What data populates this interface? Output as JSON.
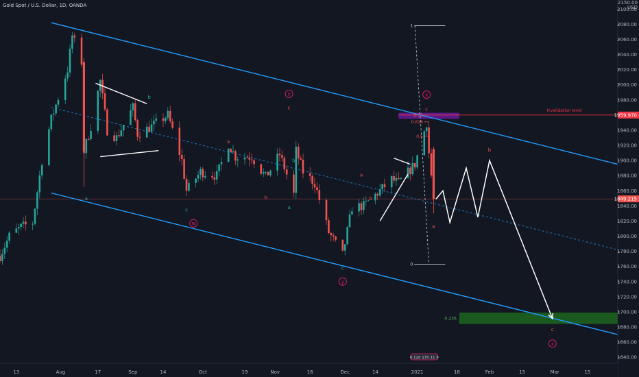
{
  "header": {
    "title": "Gold Spot / U.S. Dollar, 1D, OANDA",
    "currency": "USD"
  },
  "colors": {
    "background": "#131722",
    "grid": "#1e222d",
    "bull": "#26a69a",
    "bear": "#ef5350",
    "channel": "#2196f3",
    "drawing": "#ffffff",
    "label_green": "#26a69a",
    "label_red": "#ef5350",
    "label_magenta": "#e91e63",
    "invalidation": "#f23645",
    "target_zone": "#1b5e20",
    "fib_zone": "#6a1b9a"
  },
  "chart_data": {
    "type": "candlestick",
    "symbol": "Gold Spot / U.S. Dollar",
    "interval": "1D",
    "broker": "OANDA",
    "ylim": [
      1632,
      2112
    ],
    "xlim": [
      "2020-07-06",
      "2021-03-28"
    ],
    "y_ticks": [
      1640,
      1660,
      1680,
      1700,
      1720,
      1740,
      1760,
      1780,
      1800,
      1820,
      1840,
      1860,
      1880,
      1900,
      1920,
      1940,
      1960,
      1980,
      2000,
      2020,
      2040,
      2060,
      2080,
      2100
    ],
    "top_partial_label": "2150.00",
    "x_ticks": [
      {
        "label": "13",
        "date": "2020-07-13"
      },
      {
        "label": "Aug",
        "date": "2020-08-01"
      },
      {
        "label": "17",
        "date": "2020-08-17"
      },
      {
        "label": "Sep",
        "date": "2020-09-01"
      },
      {
        "label": "14",
        "date": "2020-09-14"
      },
      {
        "label": "Oct",
        "date": "2020-10-01"
      },
      {
        "label": "19",
        "date": "2020-10-19"
      },
      {
        "label": "Nov",
        "date": "2020-11-01"
      },
      {
        "label": "16",
        "date": "2020-11-16"
      },
      {
        "label": "Dec",
        "date": "2020-12-01"
      },
      {
        "label": "14",
        "date": "2020-12-14"
      },
      {
        "label": "2021",
        "date": "2021-01-01"
      },
      {
        "label": "18",
        "date": "2021-01-18"
      },
      {
        "label": "Feb",
        "date": "2021-02-01"
      },
      {
        "label": "15",
        "date": "2021-02-15"
      },
      {
        "label": "Mar",
        "date": "2021-03-01"
      },
      {
        "label": "15",
        "date": "2021-03-15"
      }
    ],
    "grid": false,
    "price_tags": [
      {
        "label": "1959.970",
        "value": 1959.97,
        "color": "#f23645"
      },
      {
        "label": "1849.215",
        "value": 1849.215,
        "color": "#ef5350"
      }
    ],
    "countdown_label": "6 12d 17h 11 9",
    "close_trend": [
      [
        "2020-07-06",
        1774
      ],
      [
        "2020-07-10",
        1800
      ],
      [
        "2020-07-15",
        1812
      ],
      [
        "2020-07-20",
        1818
      ],
      [
        "2020-07-24",
        1900
      ],
      [
        "2020-07-28",
        1955
      ],
      [
        "2020-08-04",
        2020
      ],
      [
        "2020-08-06",
        2065
      ],
      [
        "2020-08-10",
        2030
      ],
      [
        "2020-08-11",
        1912
      ],
      [
        "2020-08-14",
        1945
      ],
      [
        "2020-08-18",
        2005
      ],
      [
        "2020-08-21",
        1940
      ],
      [
        "2020-08-25",
        1930
      ],
      [
        "2020-09-01",
        1970
      ],
      [
        "2020-09-03",
        1935
      ],
      [
        "2020-09-09",
        1945
      ],
      [
        "2020-09-16",
        1960
      ],
      [
        "2020-09-22",
        1900
      ],
      [
        "2020-09-24",
        1860
      ],
      [
        "2020-09-30",
        1885
      ],
      [
        "2020-10-07",
        1880
      ],
      [
        "2020-10-12",
        1922
      ],
      [
        "2020-10-15",
        1905
      ],
      [
        "2020-10-22",
        1905
      ],
      [
        "2020-10-28",
        1878
      ],
      [
        "2020-11-03",
        1908
      ],
      [
        "2020-11-09",
        1855
      ],
      [
        "2020-11-06",
        1950
      ],
      [
        "2020-11-13",
        1885
      ],
      [
        "2020-11-18",
        1870
      ],
      [
        "2020-11-24",
        1805
      ],
      [
        "2020-11-30",
        1775
      ],
      [
        "2020-12-04",
        1838
      ],
      [
        "2020-12-09",
        1840
      ],
      [
        "2020-12-16",
        1860
      ],
      [
        "2020-12-21",
        1875
      ],
      [
        "2020-12-24",
        1870
      ],
      [
        "2020-12-31",
        1895
      ],
      [
        "2021-01-05",
        1950
      ],
      [
        "2021-01-06",
        1910
      ],
      [
        "2021-01-08",
        1850
      ]
    ],
    "extra_candles": [
      {
        "date": "2020-08-11",
        "open": 2030,
        "high": 2035,
        "low": 1865,
        "close": 1912
      },
      {
        "date": "2021-01-08",
        "open": 1915,
        "high": 1918,
        "low": 1830,
        "close": 1849
      }
    ],
    "channel_upper": [
      [
        "2020-07-28",
        2082
      ],
      [
        "2021-03-28",
        1895
      ]
    ],
    "channel_lower": [
      [
        "2020-07-28",
        1857
      ],
      [
        "2021-03-28",
        1670
      ]
    ],
    "channel_mid": [
      [
        "2020-07-28",
        1970
      ],
      [
        "2021-03-28",
        1782
      ]
    ],
    "triangle_lines": [
      [
        [
          "2020-08-16",
          2002
        ],
        [
          "2020-09-07",
          1975
        ]
      ],
      [
        [
          "2020-08-18",
          1905
        ],
        [
          "2020-09-12",
          1913
        ]
      ],
      [
        [
          "2020-12-16",
          1820
        ],
        [
          "2020-12-28",
          1882
        ]
      ],
      [
        [
          "2020-12-22",
          1903
        ],
        [
          "2020-12-29",
          1895
        ]
      ]
    ],
    "fib_tool": {
      "levels": [
        {
          "label": "1",
          "value": 2078
        },
        {
          "label": "0.65",
          "value": 1960
        },
        {
          "label": "0.618",
          "value": 1951
        },
        {
          "label": "0.5",
          "value": 1932
        },
        {
          "label": "0",
          "value": 1763
        }
      ],
      "diagonal": [
        [
          "2020-12-31",
          2078
        ],
        [
          "2021-01-06",
          1763
        ]
      ]
    },
    "invalidation_level": {
      "label": "Invalidation level",
      "value": 1960
    },
    "projection": [
      [
        "2021-01-09",
        1849
      ],
      [
        "2021-01-12",
        1860
      ],
      [
        "2021-01-15",
        1818
      ],
      [
        "2021-01-22",
        1890
      ],
      [
        "2021-01-27",
        1825
      ],
      [
        "2021-02-01",
        1900
      ],
      [
        "2021-02-28",
        1691
      ]
    ],
    "fib_zone": {
      "from_date": "2020-12-24",
      "to_date": "2021-01-19",
      "y0": 1955,
      "y1": 1963
    },
    "target_zone": {
      "label": "-0.236",
      "from_date": "2021-01-19",
      "to_date": "2021-03-28",
      "y0": 1684,
      "y1": 1699
    },
    "wave_labels": [
      {
        "text": "a",
        "date": "2020-08-12",
        "value": 1850,
        "color": "green"
      },
      {
        "text": "b",
        "date": "2020-09-08",
        "value": 1984,
        "color": "green"
      },
      {
        "text": "c",
        "date": "2020-09-24",
        "value": 1835,
        "color": "green"
      },
      {
        "text": "w",
        "date": "2020-09-27",
        "value": 1817,
        "color": "magenta",
        "circle": true
      },
      {
        "text": "a",
        "date": "2020-10-12",
        "value": 1925,
        "color": "red"
      },
      {
        "text": "b",
        "date": "2020-10-28",
        "value": 1851,
        "color": "red"
      },
      {
        "text": "x",
        "date": "2020-11-07",
        "value": 1988,
        "color": "magenta",
        "circle": true
      },
      {
        "text": "c",
        "date": "2020-11-07",
        "value": 1970,
        "color": "red"
      },
      {
        "text": "b",
        "date": "2020-11-09",
        "value": 1900,
        "color": "green"
      },
      {
        "text": "a",
        "date": "2020-11-07",
        "value": 1838,
        "color": "green"
      },
      {
        "text": "c",
        "date": "2020-11-30",
        "value": 1758,
        "color": "green"
      },
      {
        "text": "y",
        "date": "2020-11-30",
        "value": 1740,
        "color": "magenta",
        "circle": true
      },
      {
        "text": "a",
        "date": "2020-12-08",
        "value": 1881,
        "color": "red"
      },
      {
        "text": "b",
        "date": "2020-12-12",
        "value": 1850,
        "color": "red"
      },
      {
        "text": "x",
        "date": "2021-01-05",
        "value": 1987,
        "color": "magenta",
        "circle": true
      },
      {
        "text": "c",
        "date": "2021-01-05",
        "value": 1968,
        "color": "red"
      },
      {
        "text": "a",
        "date": "2021-01-08",
        "value": 1813,
        "color": "red"
      },
      {
        "text": "b",
        "date": "2021-02-01",
        "value": 1914,
        "color": "red"
      },
      {
        "text": "c",
        "date": "2021-02-28",
        "value": 1677,
        "color": "red"
      },
      {
        "text": "z",
        "date": "2021-02-28",
        "value": 1658,
        "color": "magenta",
        "circle": true
      }
    ]
  }
}
